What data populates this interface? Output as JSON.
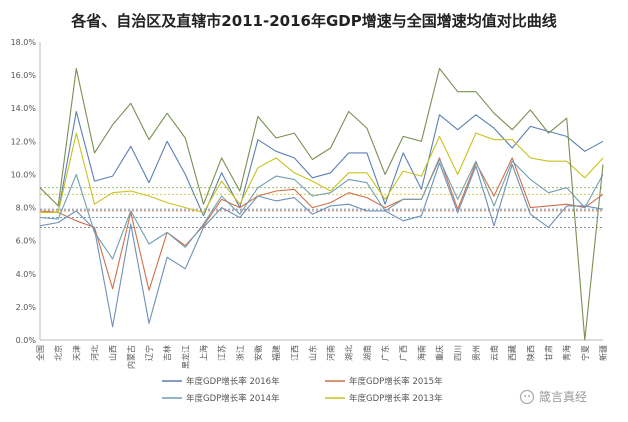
{
  "watermark": "箴言真经",
  "chart_data": {
    "type": "line",
    "title": "各省、自治区及直辖市2011-2016年GDP增速与全国增速均值对比曲线",
    "ylim": [
      0,
      18
    ],
    "y_ticks": [
      "0.0%",
      "2.0%",
      "4.0%",
      "6.0%",
      "8.0%",
      "10.0%",
      "12.0%",
      "14.0%",
      "16.0%",
      "18.0%"
    ],
    "grid": false,
    "legend_position": "bottom",
    "categories": [
      "全国",
      "北京",
      "天津",
      "河北",
      "山西",
      "内蒙古",
      "辽宁",
      "吉林",
      "黑龙江",
      "上海",
      "江苏",
      "浙江",
      "安徽",
      "福建",
      "江西",
      "山东",
      "河南",
      "湖北",
      "湖南",
      "广东",
      "广西",
      "海南",
      "重庆",
      "四川",
      "贵州",
      "云南",
      "西藏",
      "陕西",
      "甘肃",
      "青海",
      "宁夏",
      "新疆"
    ],
    "series": [
      {
        "name": "年度GDP增长率 2016年",
        "color": "#5b7fb5",
        "values": [
          7.7,
          7.7,
          13.8,
          9.6,
          9.9,
          11.7,
          9.5,
          12.0,
          10.0,
          7.5,
          10.1,
          8.0,
          12.1,
          11.4,
          11.0,
          9.8,
          10.1,
          11.3,
          11.3,
          8.2,
          11.3,
          9.1,
          13.6,
          12.7,
          13.6,
          12.8,
          11.6,
          12.9,
          12.6,
          12.3,
          11.4,
          12.0
        ]
      },
      {
        "name": "年度GDP增长率 2015年",
        "color": "#d0704a",
        "values": [
          7.8,
          7.7,
          7.2,
          6.8,
          3.1,
          7.7,
          3.0,
          6.5,
          5.7,
          6.9,
          8.5,
          8.0,
          8.7,
          9.0,
          9.1,
          8.0,
          8.3,
          8.9,
          8.6,
          8.0,
          8.5,
          8.5,
          11.0,
          7.9,
          10.7,
          8.7,
          11.0,
          8.0,
          8.1,
          8.2,
          8.0,
          8.8
        ]
      },
      {
        "name": "年度GDP增长率 2014年",
        "color": "#6f9fb0",
        "values": [
          7.4,
          7.3,
          10.0,
          6.5,
          4.9,
          7.8,
          5.8,
          6.5,
          5.6,
          7.0,
          8.7,
          7.6,
          9.2,
          9.9,
          9.7,
          8.7,
          8.9,
          9.7,
          9.5,
          7.8,
          8.5,
          8.5,
          10.9,
          8.5,
          10.8,
          8.1,
          10.8,
          9.7,
          8.9,
          9.2,
          8.0,
          10.0
        ]
      },
      {
        "name": "年度GDP增长率 2013年",
        "color": "#c9c21f",
        "values": [
          7.7,
          7.7,
          12.5,
          8.2,
          8.9,
          9.0,
          8.7,
          8.3,
          8.0,
          7.7,
          9.6,
          8.2,
          10.4,
          11.0,
          10.1,
          9.6,
          9.0,
          10.1,
          10.1,
          8.5,
          10.2,
          9.9,
          12.3,
          10.0,
          12.5,
          12.1,
          12.1,
          11.0,
          10.8,
          10.8,
          9.8,
          11.0
        ]
      },
      {
        "name": "",
        "color": "#7a8f52",
        "values": [
          9.2,
          8.1,
          16.4,
          11.3,
          13.0,
          14.3,
          12.1,
          13.7,
          12.2,
          8.2,
          11.0,
          9.0,
          13.5,
          12.2,
          12.5,
          10.9,
          11.6,
          13.8,
          12.8,
          10.0,
          12.3,
          12.0,
          16.4,
          15.0,
          15.0,
          13.7,
          12.7,
          13.9,
          12.5,
          13.4,
          0.0,
          10.6
        ]
      },
      {
        "name": "",
        "color": "#6f8fb8",
        "values": [
          6.9,
          7.1,
          7.8,
          6.7,
          0.8,
          7.0,
          1.0,
          5.0,
          4.3,
          6.8,
          8.0,
          7.4,
          8.7,
          8.4,
          8.6,
          7.6,
          8.1,
          8.2,
          7.8,
          7.8,
          7.2,
          7.5,
          10.7,
          7.7,
          10.5,
          6.9,
          10.6,
          7.6,
          6.8,
          8.1,
          8.1,
          7.9
        ]
      }
    ],
    "reference_lines": [
      {
        "value": 9.2,
        "color": "#8fae5e"
      },
      {
        "value": 8.8,
        "color": "#cfc43a"
      },
      {
        "value": 7.9,
        "color": "#5b7fb5"
      },
      {
        "value": 7.8,
        "color": "#d0704a"
      },
      {
        "value": 7.4,
        "color": "#6f9fb0"
      },
      {
        "value": 6.8,
        "color": "#7a7a7a"
      }
    ]
  }
}
